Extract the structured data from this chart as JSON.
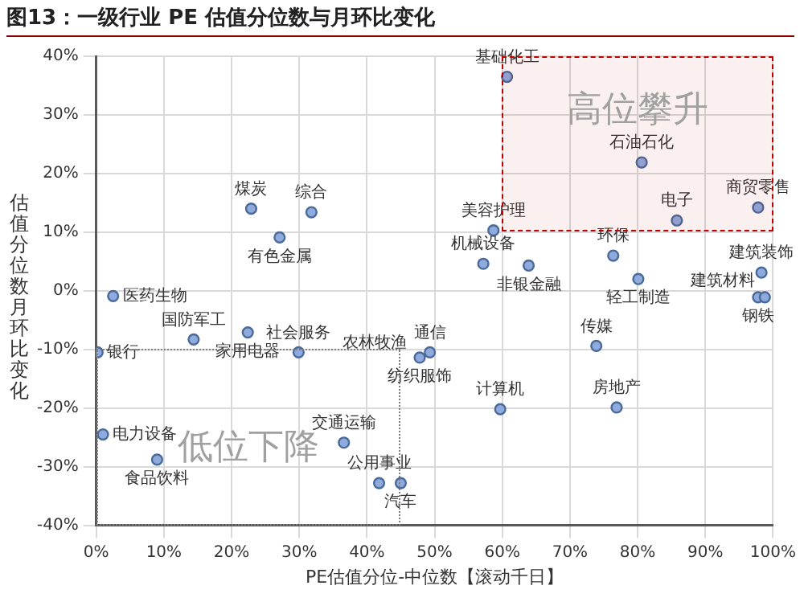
{
  "chart_data": {
    "type": "scatter",
    "title": "图13：一级行业 PE 估值分位数与月环比变化",
    "xlabel": "PE估值分位-中位数【滚动千日】",
    "ylabel": "估值分位数月环比变化",
    "xlim": [
      0,
      100
    ],
    "xticks": [
      {
        "value": 0,
        "label": "0%"
      },
      {
        "value": 10,
        "label": "10%"
      },
      {
        "value": 20,
        "label": "20%"
      },
      {
        "value": 30,
        "label": "30%"
      },
      {
        "value": 40,
        "label": "40%"
      },
      {
        "value": 50,
        "label": "50%"
      },
      {
        "value": 60,
        "label": "60%"
      },
      {
        "value": 70,
        "label": "70%"
      },
      {
        "value": 80,
        "label": "80%"
      },
      {
        "value": 90,
        "label": "90%"
      },
      {
        "value": 100,
        "label": "100%"
      }
    ],
    "ylim": [
      -40,
      40
    ],
    "yticks": [
      {
        "value": -40,
        "label": "-40%"
      },
      {
        "value": -30,
        "label": "-30%"
      },
      {
        "value": -20,
        "label": "-20%"
      },
      {
        "value": -10,
        "label": "-10%"
      },
      {
        "value": 0,
        "label": "0%"
      },
      {
        "value": 10,
        "label": "10%"
      },
      {
        "value": 20,
        "label": "20%"
      },
      {
        "value": 30,
        "label": "30%"
      },
      {
        "value": 40,
        "label": "40%"
      }
    ],
    "grid": true,
    "legend": false,
    "marker": "circle",
    "series": [
      {
        "color": "#8faadc",
        "x": [
          60.7,
          80.6,
          85.8,
          97.8,
          58.7,
          57.2,
          63.9,
          76.4,
          80.1,
          98.3,
          97.8,
          98.8,
          22.9,
          31.8,
          27.1,
          2.5,
          14.4,
          22.4,
          0.2,
          29.9,
          49.3,
          47.8,
          47.3,
          1.0,
          9.0,
          36.6,
          41.8,
          45.0,
          73.9,
          76.9,
          59.7
        ],
        "values": [
          36.5,
          21.9,
          12.0,
          14.2,
          10.3,
          4.6,
          4.3,
          6.0,
          2.0,
          3.1,
          -1.1,
          -1.1,
          14.0,
          13.4,
          9.1,
          -0.9,
          -8.3,
          -7.1,
          -10.5,
          -10.5,
          -10.5,
          -11.4,
          null,
          -24.5,
          -28.8,
          -25.9,
          -32.8,
          -32.8,
          -9.4,
          -19.9,
          -20.2
        ]
      }
    ],
    "annotations": [
      "高位攀升",
      "低位下降",
      {
        "text": "基础化工",
        "x": 60.7,
        "y": 36.5
      },
      {
        "text": "石油石化",
        "x": 80.6,
        "y": 21.9
      },
      {
        "text": "电子",
        "x": 85.8,
        "y": 12.0
      },
      {
        "text": "商贸零售",
        "x": 97.8,
        "y": 14.2
      },
      {
        "text": "美容护理",
        "x": 58.7,
        "y": 10.3
      },
      {
        "text": "机械设备",
        "x": 57.2,
        "y": 4.6
      },
      {
        "text": "非银金融",
        "x": 63.9,
        "y": 4.3
      },
      {
        "text": "环保",
        "x": 76.4,
        "y": 6.0
      },
      {
        "text": "轻工制造",
        "x": 80.1,
        "y": 2.0
      },
      {
        "text": "建筑装饰",
        "x": 98.3,
        "y": 3.1
      },
      {
        "text": "钢铁",
        "x": 97.8,
        "y": -1.1
      },
      {
        "text": "建筑材料",
        "x": 98.8,
        "y": -1.1
      },
      {
        "text": "煤炭",
        "x": 22.9,
        "y": 14.0
      },
      {
        "text": "综合",
        "x": 31.8,
        "y": 13.4
      },
      {
        "text": "有色金属",
        "x": 27.1,
        "y": 9.1
      },
      {
        "text": "医药生物",
        "x": 2.5,
        "y": -0.9
      },
      {
        "text": "国防军工",
        "x": 14.4,
        "y": -8.3
      },
      {
        "text": "家用电器",
        "x": 22.4,
        "y": -7.1
      },
      {
        "text": "银行",
        "x": 0.2,
        "y": -10.5
      },
      {
        "text": "社会服务",
        "x": 29.9,
        "y": -10.5
      },
      {
        "text": "通信",
        "x": 49.3,
        "y": -10.5
      },
      {
        "text": "纺织服饰",
        "x": 47.8,
        "y": -11.4
      },
      {
        "text": "农林牧渔",
        "x": 47.3,
        "y": -11.7
      },
      {
        "text": "电力设备",
        "x": 1.0,
        "y": -24.5
      },
      {
        "text": "食品饮料",
        "x": 9.0,
        "y": -28.8
      },
      {
        "text": "交通运输",
        "x": 36.6,
        "y": -25.9
      },
      {
        "text": "公用事业",
        "x": 41.8,
        "y": -32.8
      },
      {
        "text": "汽车",
        "x": 45.0,
        "y": -32.8
      },
      {
        "text": "传媒",
        "x": 73.9,
        "y": -9.4
      },
      {
        "text": "房地产",
        "x": 76.9,
        "y": -19.9
      },
      {
        "text": "计算机",
        "x": 59.7,
        "y": -20.2
      }
    ]
  }
}
